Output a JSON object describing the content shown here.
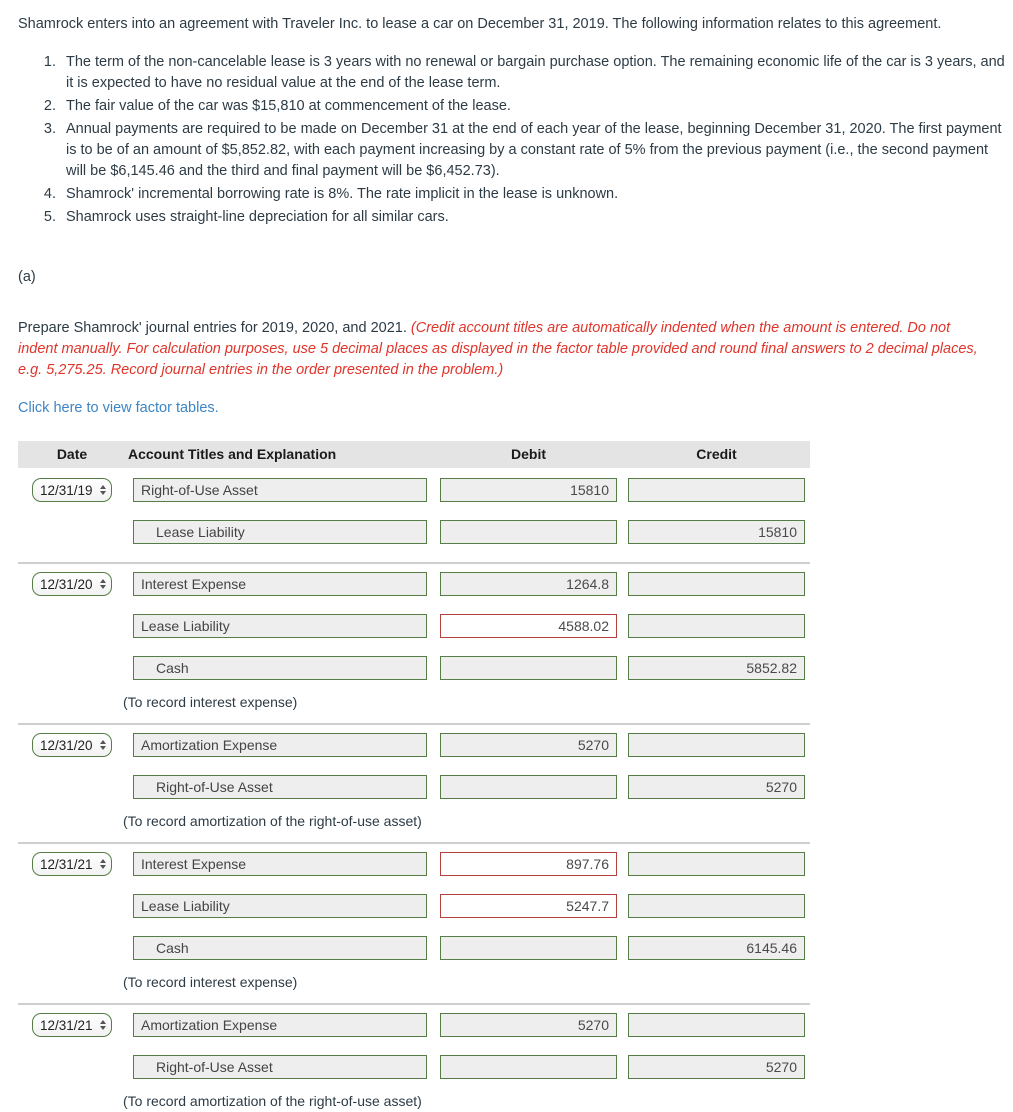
{
  "problem": {
    "intro": "Shamrock enters into an agreement with Traveler Inc. to lease a car on December 31, 2019. The following information relates to this agreement.",
    "items": [
      "The term of the non-cancelable lease is 3 years with no renewal or bargain purchase option. The remaining economic life of the car is 3 years, and it is expected to have no residual value at the end of the lease term.",
      "The fair value of the car was $15,810 at commencement of the lease.",
      "Annual payments are required to be made on December 31 at the end of each year of the lease, beginning December 31, 2020. The first payment is to be of an amount of $5,852.82, with each payment increasing by a constant rate of 5% from the previous payment (i.e., the second payment will be $6,145.46 and the third and final payment will be $6,452.73).",
      "Shamrock' incremental borrowing rate is 8%. The rate implicit in the lease is unknown.",
      "Shamrock uses straight-line depreciation for all similar cars."
    ],
    "part_label": "(a)",
    "instruction_plain": "Prepare Shamrock' journal entries for 2019, 2020, and 2021. ",
    "instruction_red": "(Credit account titles are automatically indented when the amount is entered. Do not indent manually. For calculation purposes, use 5 decimal places as displayed in the factor table provided and round final answers to 2 decimal places, e.g. 5,275.25. Record journal entries in the order presented in the problem.)",
    "factor_link": "Click here to view factor tables."
  },
  "journal": {
    "headers": {
      "date": "Date",
      "account": "Account Titles and Explanation",
      "debit": "Debit",
      "credit": "Credit"
    },
    "entries": [
      {
        "date": "12/31/19",
        "rows": [
          {
            "account": "Right-of-Use Asset",
            "indented": false,
            "debit": "15810",
            "credit": "",
            "error_field": null
          },
          {
            "account": "Lease Liability",
            "indented": true,
            "debit": "",
            "credit": "15810",
            "error_field": null
          }
        ],
        "note": ""
      },
      {
        "date": "12/31/20",
        "rows": [
          {
            "account": "Interest Expense",
            "indented": false,
            "debit": "1264.8",
            "credit": "",
            "error_field": null
          },
          {
            "account": "Lease Liability",
            "indented": false,
            "debit": "4588.02",
            "credit": "",
            "error_field": "debit"
          },
          {
            "account": "Cash",
            "indented": true,
            "debit": "",
            "credit": "5852.82",
            "error_field": null
          }
        ],
        "note": "(To record interest expense)"
      },
      {
        "date": "12/31/20",
        "rows": [
          {
            "account": "Amortization Expense",
            "indented": false,
            "debit": "5270",
            "credit": "",
            "error_field": null
          },
          {
            "account": "Right-of-Use Asset",
            "indented": true,
            "debit": "",
            "credit": "5270",
            "error_field": null
          }
        ],
        "note": "(To record amortization of the right-of-use asset)"
      },
      {
        "date": "12/31/21",
        "rows": [
          {
            "account": "Interest Expense",
            "indented": false,
            "debit": "897.76",
            "credit": "",
            "error_field": "debit"
          },
          {
            "account": "Lease Liability",
            "indented": false,
            "debit": "5247.7",
            "credit": "",
            "error_field": "debit"
          },
          {
            "account": "Cash",
            "indented": true,
            "debit": "",
            "credit": "6145.46",
            "error_field": null
          }
        ],
        "note": "(To record interest expense)"
      },
      {
        "date": "12/31/21",
        "rows": [
          {
            "account": "Amortization Expense",
            "indented": false,
            "debit": "5270",
            "credit": "",
            "error_field": null
          },
          {
            "account": "Right-of-Use Asset",
            "indented": true,
            "debit": "",
            "credit": "5270",
            "error_field": null
          }
        ],
        "note": "(To record amortization of the right-of-use asset)"
      }
    ],
    "date_spinner_icon": "up-down-spinner"
  },
  "colors": {
    "body_text": "#2d3b45",
    "instruction_red": "#e0352b",
    "link_blue": "#3c85c5",
    "field_border_green": "#567d46",
    "field_border_error_red": "#b0433d",
    "field_readonly_bg": "#eeeeee",
    "header_row_bg": "#e4e4e4",
    "group_separator": "#cfcfcf"
  }
}
